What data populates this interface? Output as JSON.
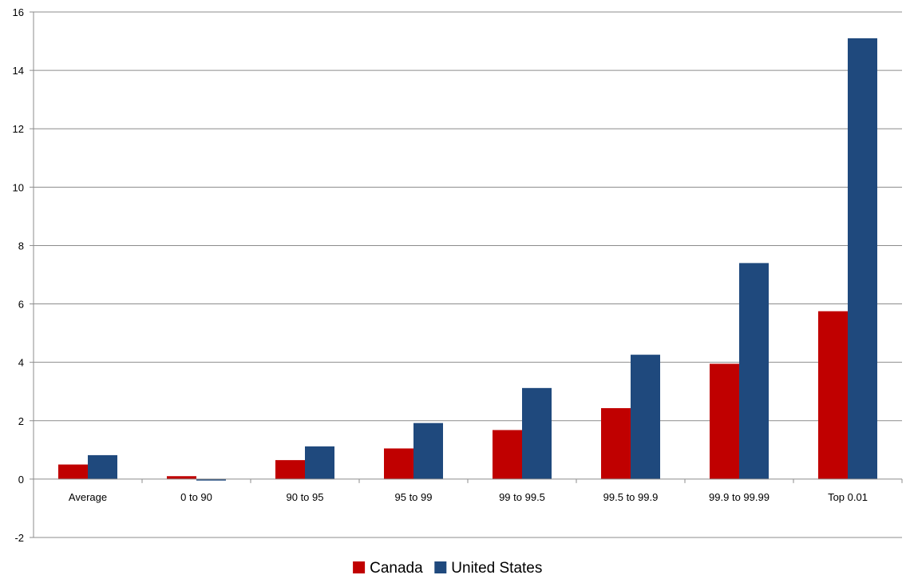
{
  "chart_data": {
    "type": "bar",
    "categories": [
      "Average",
      "0 to 90",
      "90 to 95",
      "95 to 99",
      "99 to 99.5",
      "99.5 to 99.9",
      "99.9 to 99.99",
      "Top 0.01"
    ],
    "series": [
      {
        "name": "Canada",
        "color": "#c00000",
        "values": [
          0.5,
          0.1,
          0.65,
          1.05,
          1.68,
          2.43,
          3.95,
          5.75
        ]
      },
      {
        "name": "United States",
        "color": "#1f497d",
        "values": [
          0.82,
          -0.05,
          1.12,
          1.92,
          3.12,
          4.26,
          7.4,
          15.1
        ]
      }
    ],
    "ylim": [
      -2,
      16
    ],
    "yticks": [
      -2,
      0,
      2,
      4,
      6,
      8,
      10,
      12,
      14,
      16
    ],
    "grid": true,
    "legend": "bottom-center"
  }
}
